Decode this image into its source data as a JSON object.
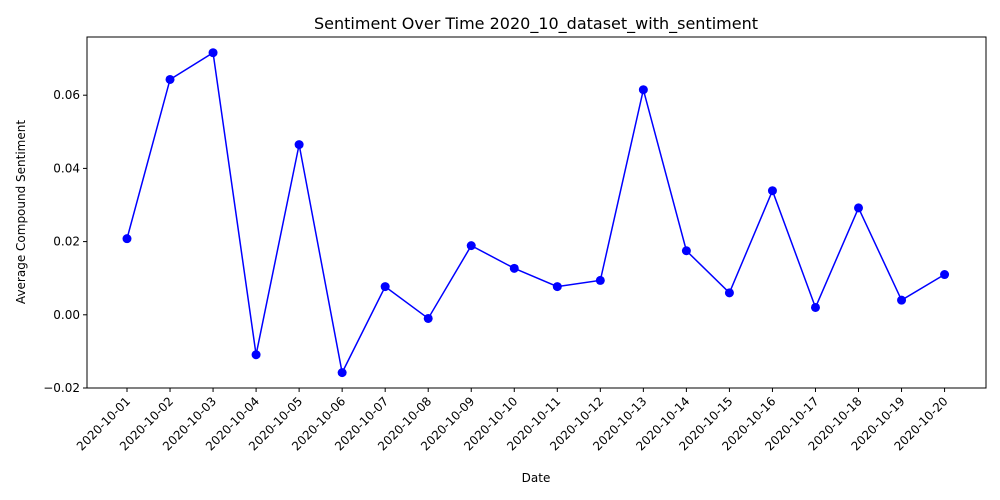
{
  "chart_data": {
    "type": "line",
    "title": "Sentiment Over Time 2020_10_dataset_with_sentiment",
    "xlabel": "Date",
    "ylabel": "Average Compound Sentiment",
    "categories": [
      "2020-10-01",
      "2020-10-02",
      "2020-10-03",
      "2020-10-04",
      "2020-10-05",
      "2020-10-06",
      "2020-10-07",
      "2020-10-08",
      "2020-10-09",
      "2020-10-10",
      "2020-10-11",
      "2020-10-12",
      "2020-10-13",
      "2020-10-14",
      "2020-10-15",
      "2020-10-16",
      "2020-10-17",
      "2020-10-18",
      "2020-10-19",
      "2020-10-20"
    ],
    "series": [
      {
        "values": [
          0.0208,
          0.0643,
          0.0716,
          -0.0109,
          0.0465,
          -0.0158,
          0.0077,
          -0.001,
          0.0189,
          0.0127,
          0.0077,
          0.0094,
          0.0615,
          0.0175,
          0.006,
          0.0339,
          0.002,
          0.0292,
          0.004,
          0.011
        ],
        "color": "#0000ff"
      }
    ],
    "yticks": [
      "−0.02",
      "0.00",
      "0.02",
      "0.04",
      "0.06"
    ],
    "ytick_values": [
      -0.02,
      0.0,
      0.02,
      0.04,
      0.06
    ],
    "ylim": [
      -0.02,
      0.0759
    ],
    "grid": false,
    "legend": false
  }
}
